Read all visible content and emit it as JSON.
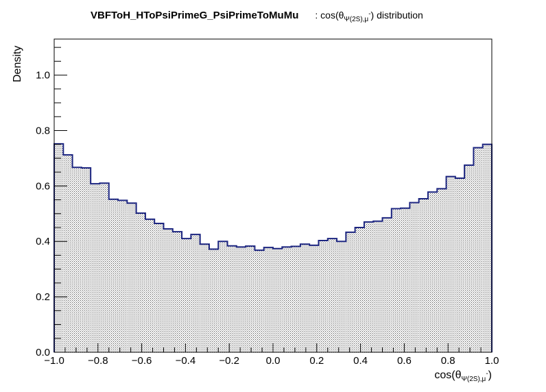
{
  "chart_data": {
    "type": "bar",
    "title": "VBFToH_HToPsiPrimeG_PsiPrimeToMuMu",
    "title_suffix": ": cos(θ",
    "title_subscript": "Ψ(2S),μ",
    "title_superscript": "-",
    "title_end": ") distribution",
    "xlabel_main": "cos(θ",
    "xlabel_subscript": "Ψ(2S),μ",
    "xlabel_superscript": "-",
    "xlabel_end": ")",
    "ylabel": "Density",
    "xlim": [
      -1.0,
      1.0
    ],
    "ylim": [
      0.0,
      1.13
    ],
    "x_ticks": [
      "−1.0",
      "−0.8",
      "−0.6",
      "−0.4",
      "−0.2",
      "0.0",
      "0.2",
      "0.4",
      "0.6",
      "0.8",
      "1.0"
    ],
    "x_tick_values": [
      -1.0,
      -0.8,
      -0.6,
      -0.4,
      -0.2,
      0.0,
      0.2,
      0.4,
      0.6,
      0.8,
      1.0
    ],
    "y_ticks": [
      "0.0",
      "0.2",
      "0.4",
      "0.6",
      "0.8",
      "1.0"
    ],
    "y_tick_values": [
      0.0,
      0.2,
      0.4,
      0.6,
      0.8,
      1.0
    ],
    "bin_edges_range": [
      -1.0,
      1.0
    ],
    "values": [
      0.752,
      0.712,
      0.667,
      0.665,
      0.608,
      0.61,
      0.552,
      0.548,
      0.538,
      0.502,
      0.48,
      0.465,
      0.445,
      0.435,
      0.41,
      0.425,
      0.39,
      0.372,
      0.4,
      0.384,
      0.38,
      0.383,
      0.368,
      0.378,
      0.374,
      0.38,
      0.382,
      0.39,
      0.386,
      0.403,
      0.41,
      0.4,
      0.433,
      0.45,
      0.47,
      0.473,
      0.485,
      0.518,
      0.52,
      0.54,
      0.554,
      0.578,
      0.59,
      0.634,
      0.628,
      0.675,
      0.738,
      0.75
    ],
    "colors": {
      "line": "#1c2580",
      "fill_dots": "#555555",
      "axis": "#000000"
    },
    "grid": false,
    "legend": "none"
  }
}
